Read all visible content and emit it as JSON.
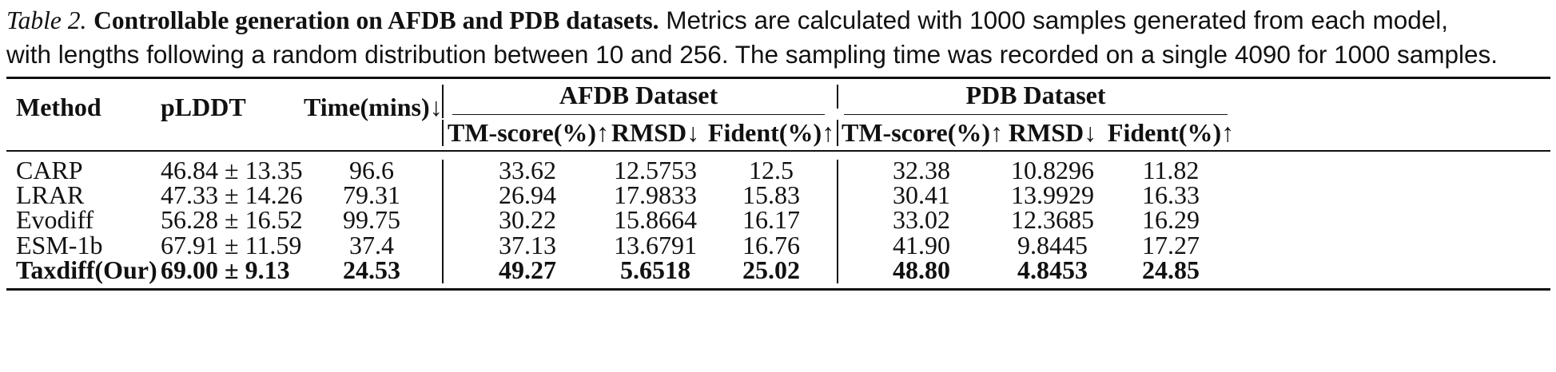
{
  "caption": {
    "label": "Table 2.",
    "title": "Controllable generation on AFDB and PDB datasets.",
    "text_line1": "Metrics are calculated with 1000 samples generated from each model,",
    "text_line2": "with lengths following a random distribution between 10 and 256. The sampling time was recorded on a single 4090 for 1000 samples."
  },
  "table": {
    "headers": {
      "method": "Method",
      "plddt": "pLDDT",
      "time": "Time(mins)↓",
      "group_afdb": "AFDB Dataset",
      "group_pdb": "PDB Dataset",
      "afdb_tm": "TM-score(%)↑",
      "afdb_rmsd": "RMSD↓",
      "afdb_fident": "Fident(%)↑",
      "pdb_tm": "TM-score(%)↑",
      "pdb_rmsd": "RMSD↓",
      "pdb_fident": "Fident(%)↑"
    },
    "rows": [
      {
        "method": "CARP",
        "plddt": "46.84 ± 13.35",
        "time": "96.6",
        "afdb_tm": "33.62",
        "afdb_rmsd": "12.5753",
        "afdb_fident": "12.5",
        "pdb_tm": "32.38",
        "pdb_rmsd": "10.8296",
        "pdb_fident": "11.82"
      },
      {
        "method": "LRAR",
        "plddt": "47.33 ± 14.26",
        "time": "79.31",
        "afdb_tm": "26.94",
        "afdb_rmsd": "17.9833",
        "afdb_fident": "15.83",
        "pdb_tm": "30.41",
        "pdb_rmsd": "13.9929",
        "pdb_fident": "16.33"
      },
      {
        "method": "Evodiff",
        "plddt": "56.28 ± 16.52",
        "time": "99.75",
        "afdb_tm": "30.22",
        "afdb_rmsd": "15.8664",
        "afdb_fident": "16.17",
        "pdb_tm": "33.02",
        "pdb_rmsd": "12.3685",
        "pdb_fident": "16.29"
      },
      {
        "method": "ESM-1b",
        "plddt": "67.91 ± 11.59",
        "time": "37.4",
        "afdb_tm": "37.13",
        "afdb_rmsd": "13.6791",
        "afdb_fident": "16.76",
        "pdb_tm": "41.90",
        "pdb_rmsd": "9.8445",
        "pdb_fident": "17.27"
      },
      {
        "method": "Taxdiff(Our)",
        "plddt": "69.00 ± 9.13",
        "time": "24.53",
        "afdb_tm": "49.27",
        "afdb_rmsd": "5.6518",
        "afdb_fident": "25.02",
        "pdb_tm": "48.80",
        "pdb_rmsd": "4.8453",
        "pdb_fident": "24.85"
      }
    ]
  }
}
